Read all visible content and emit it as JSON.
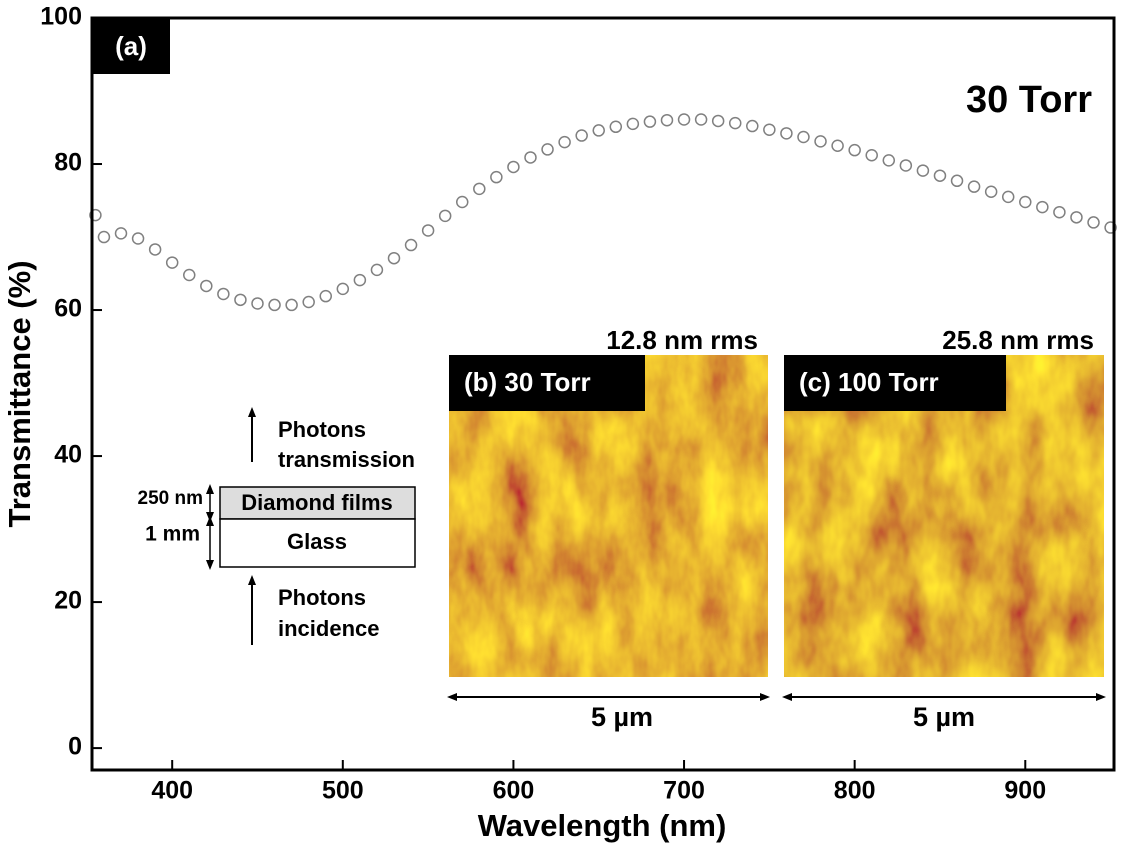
{
  "chart_data": {
    "type": "scatter",
    "xlabel": "Wavelength (nm)",
    "ylabel": "Transmittance (%)",
    "xlim": [
      353,
      952
    ],
    "ylim": [
      -3,
      100
    ],
    "xticks": [
      400,
      500,
      600,
      700,
      800,
      900
    ],
    "yticks": [
      0,
      20,
      40,
      60,
      80,
      100
    ],
    "series": [
      {
        "color": "#808080",
        "x": [
          355,
          360,
          370,
          380,
          390,
          400,
          410,
          420,
          430,
          440,
          450,
          460,
          470,
          480,
          490,
          500,
          510,
          520,
          530,
          540,
          550,
          560,
          570,
          580,
          590,
          600,
          610,
          620,
          630,
          640,
          650,
          660,
          670,
          680,
          690,
          700,
          710,
          720,
          730,
          740,
          750,
          760,
          770,
          780,
          790,
          800,
          810,
          820,
          830,
          840,
          850,
          860,
          870,
          880,
          890,
          900,
          910,
          920,
          930,
          940,
          950
        ],
        "values": [
          73,
          70,
          70.5,
          69.8,
          68.3,
          66.5,
          64.8,
          63.3,
          62.2,
          61.4,
          60.9,
          60.7,
          60.7,
          61.1,
          61.9,
          62.9,
          64.1,
          65.5,
          67.1,
          68.9,
          70.9,
          72.9,
          74.8,
          76.6,
          78.2,
          79.6,
          80.9,
          82,
          83,
          83.9,
          84.6,
          85.1,
          85.5,
          85.8,
          86,
          86.1,
          86.1,
          85.9,
          85.6,
          85.2,
          84.7,
          84.2,
          83.7,
          83.1,
          82.5,
          81.9,
          81.2,
          80.5,
          79.8,
          79.1,
          78.4,
          77.7,
          76.9,
          76.2,
          75.5,
          74.8,
          74.1,
          73.4,
          72.7,
          72,
          71.3
        ]
      }
    ],
    "annotations": [
      "(a)",
      "30 Torr",
      "12.8 nm rms",
      "25.8 nm rms",
      "(b) 30 Torr",
      "(c) 100 Torr",
      "5 µm",
      "5 µm",
      "Photons",
      "transmission",
      "Photons",
      "incidence",
      "250 nm",
      "1 mm",
      "Diamond films",
      "Glass"
    ]
  }
}
